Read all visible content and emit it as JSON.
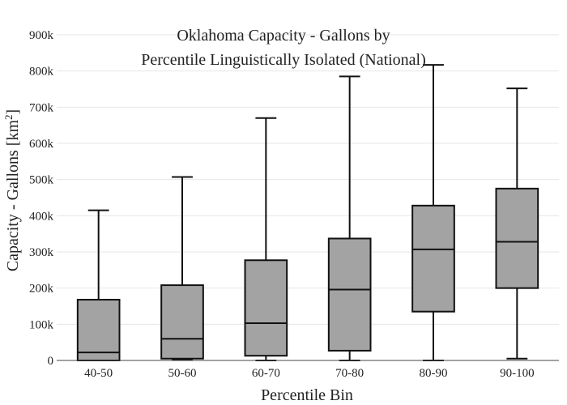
{
  "chart_data": {
    "type": "box",
    "title_lines": [
      "Oklahoma Capacity - Gallons by",
      "Percentile Linguistically Isolated (National)"
    ],
    "xlabel": "Percentile Bin",
    "ylabel": "Capacity - Gallons",
    "ylabel_unit": "[km",
    "ylabel_unit_sup": "2",
    "ylabel_unit_close": "]",
    "ylim": [
      0,
      900000
    ],
    "yticks": [
      0,
      100000,
      200000,
      300000,
      400000,
      500000,
      600000,
      700000,
      800000,
      900000
    ],
    "ytick_labels": [
      "0",
      "100k",
      "200k",
      "300k",
      "400k",
      "500k",
      "600k",
      "700k",
      "800k",
      "900k"
    ],
    "categories": [
      "40-50",
      "50-60",
      "60-70",
      "70-80",
      "80-90",
      "90-100"
    ],
    "boxes": [
      {
        "category": "40-50",
        "min": 0,
        "q1": 0,
        "median": 22000,
        "q3": 168000,
        "max": 415000
      },
      {
        "category": "50-60",
        "min": 3000,
        "q1": 5000,
        "median": 60000,
        "q3": 208000,
        "max": 507000
      },
      {
        "category": "60-70",
        "min": 0,
        "q1": 13000,
        "median": 103000,
        "q3": 277000,
        "max": 670000
      },
      {
        "category": "70-80",
        "min": 0,
        "q1": 27000,
        "median": 196000,
        "q3": 337000,
        "max": 785000
      },
      {
        "category": "80-90",
        "min": 0,
        "q1": 135000,
        "median": 307000,
        "q3": 428000,
        "max": 817000
      },
      {
        "category": "90-100",
        "min": 5000,
        "q1": 200000,
        "median": 328000,
        "q3": 475000,
        "max": 752000
      }
    ],
    "box_fill": "#a3a3a3",
    "box_stroke": "#111111",
    "grid": true,
    "legend": false
  }
}
